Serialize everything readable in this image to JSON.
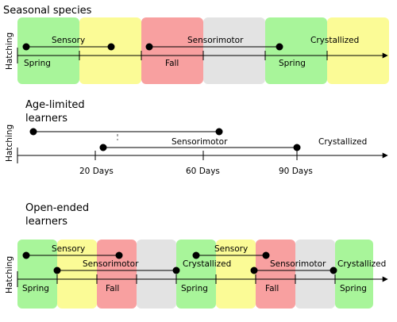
{
  "sections": {
    "seasonal": {
      "title": "Seasonal species",
      "axis_label": "Hatching",
      "season_labels": [
        "Spring",
        "Fall",
        "Spring"
      ],
      "phase_labels": [
        "Sensory",
        "Sensorimotor",
        "Crystallized"
      ]
    },
    "age_limited": {
      "title_line1": "Age-limited",
      "title_line2": "learners",
      "axis_label": "Hatching",
      "phase_labels": [
        "Sensorimotor",
        "Crystallized"
      ],
      "ticks": [
        "20 Days",
        "60 Days",
        "90 Days"
      ]
    },
    "open_ended": {
      "title_line1": "Open-ended",
      "title_line2": "learners",
      "axis_label": "Hatching",
      "season_labels": [
        "Spring",
        "Fall",
        "Spring",
        "Fall",
        "Spring"
      ],
      "phase_labels": [
        "Sensory",
        "Sensorimotor",
        "Crystallized",
        "Sensory",
        "Sensorimotor",
        "Crystallized"
      ]
    }
  },
  "colors": {
    "spring": "#a8f59a",
    "summer": "#fbfb96",
    "fall": "#f8a0a0",
    "winter": "#e3e3e3",
    "line": "#000000"
  }
}
